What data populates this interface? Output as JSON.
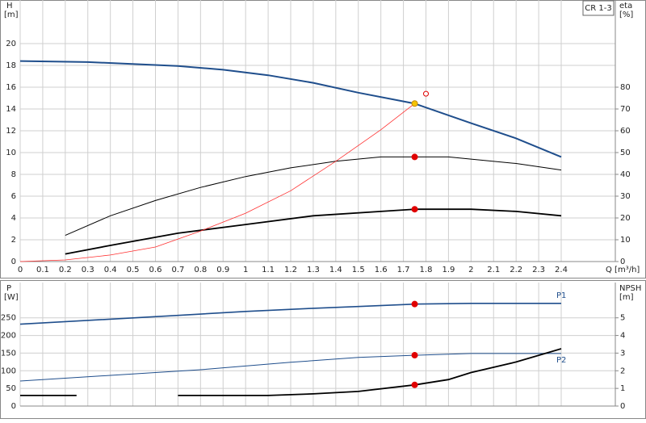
{
  "chart_data": [
    {
      "type": "line",
      "annotation": "CR 1-3",
      "y_label": "H",
      "y_unit": "[m]",
      "y2_label": "eta",
      "y2_unit": "[%]",
      "x_label": "Q [m³/h]",
      "grid": true,
      "xlim": [
        0,
        2.64
      ],
      "xticks": [
        0,
        0.1,
        0.2,
        0.3,
        0.4,
        0.5,
        0.6,
        0.7,
        0.8,
        0.9,
        1,
        1.1,
        1.2,
        1.3,
        1.4,
        1.5,
        1.6,
        1.7,
        1.8,
        1.9,
        2,
        2.1,
        2.2,
        2.3,
        2.4
      ],
      "ylim": [
        0,
        24
      ],
      "yticks": [
        0,
        2,
        4,
        6,
        8,
        10,
        12,
        14,
        16,
        18,
        20
      ],
      "y2lim": [
        0,
        120
      ],
      "y2ticks": [
        0,
        10,
        20,
        30,
        40,
        50,
        60,
        70,
        80
      ],
      "series": [
        {
          "color": "#1f4e8c",
          "line_width": 2,
          "x": [
            0,
            0.3,
            0.7,
            0.9,
            1.1,
            1.3,
            1.5,
            1.75,
            2.0,
            2.2,
            2.4
          ],
          "values": [
            18.4,
            18.3,
            17.95,
            17.6,
            17.1,
            16.4,
            15.5,
            14.5,
            12.7,
            11.3,
            9.6
          ]
        },
        {
          "color": "#000000",
          "line_width": 1,
          "axis": "y2",
          "x": [
            0.2,
            0.4,
            0.6,
            0.8,
            1.0,
            1.2,
            1.4,
            1.6,
            1.75,
            1.9,
            2.0,
            2.2,
            2.4
          ],
          "values": [
            12,
            21,
            28,
            34,
            39,
            43,
            46,
            48,
            48,
            48,
            47,
            45,
            42
          ]
        },
        {
          "color": "#000000",
          "line_width": 1.8,
          "axis": "y2",
          "x": [
            0.2,
            0.4,
            0.7,
            1.0,
            1.3,
            1.6,
            1.75,
            1.9,
            2.0,
            2.2,
            2.4
          ],
          "values": [
            3.5,
            7.4,
            13,
            17,
            21,
            23,
            24,
            24,
            24,
            23,
            21
          ]
        },
        {
          "color": "#ff3030",
          "line_width": 0.8,
          "x": [
            0,
            0.2,
            0.4,
            0.6,
            0.8,
            1.0,
            1.2,
            1.4,
            1.6,
            1.75
          ],
          "values": [
            0,
            0.15,
            0.6,
            1.33,
            2.8,
            4.44,
            6.5,
            9.2,
            12.1,
            14.5
          ]
        }
      ],
      "markers": [
        {
          "x": 1.75,
          "y": 14.5,
          "color": "#f5c400",
          "style": "filled"
        },
        {
          "x": 1.75,
          "y": 48,
          "axis": "y2",
          "color": "#e00000",
          "style": "filled"
        },
        {
          "x": 1.75,
          "y": 24,
          "axis": "y2",
          "color": "#e00000",
          "style": "filled"
        },
        {
          "x": 1.8,
          "y": 15.4,
          "color": "#e00000",
          "style": "open"
        }
      ]
    },
    {
      "type": "line",
      "y_label": "P",
      "y_unit": "[W]",
      "y2_label": "NPSH",
      "y2_unit": "[m]",
      "grid": true,
      "xlim": [
        0,
        2.64
      ],
      "ylim": [
        0,
        350
      ],
      "yticks": [
        0,
        50,
        100,
        150,
        200,
        250
      ],
      "y2lim": [
        0,
        7
      ],
      "y2ticks": [
        0,
        1,
        2,
        3,
        4,
        5
      ],
      "series": [
        {
          "name": "P1",
          "color": "#1f4e8c",
          "line_width": 1.6,
          "x": [
            0,
            0.7,
            1.0,
            1.3,
            1.5,
            1.75,
            2.0,
            2.4
          ],
          "values": [
            232,
            257,
            268,
            277,
            282,
            289,
            291,
            291
          ]
        },
        {
          "name": "P2",
          "color": "#1f4e8c",
          "line_width": 1,
          "x": [
            0,
            0.4,
            0.8,
            1.2,
            1.5,
            1.75,
            2.0,
            2.4
          ],
          "values": [
            71,
            87,
            103,
            124,
            138,
            144,
            149,
            149
          ]
        },
        {
          "color": "#000000",
          "line_width": 1.8,
          "axis": "y2",
          "x": [
            0,
            0.25,
            0.5,
            0.7,
            1.1,
            1.3,
            1.5,
            1.75,
            1.9,
            2.0,
            2.2,
            2.4
          ],
          "values": [
            0.6,
            0.6,
            null,
            0.6,
            0.6,
            0.69,
            0.83,
            1.2,
            1.5,
            1.9,
            2.5,
            3.25
          ]
        }
      ],
      "markers": [
        {
          "x": 1.75,
          "y": 289,
          "color": "#e00000",
          "style": "filled"
        },
        {
          "x": 1.75,
          "y": 144,
          "color": "#e00000",
          "style": "filled"
        },
        {
          "x": 1.75,
          "y": 1.2,
          "axis": "y2",
          "color": "#e00000",
          "style": "filled"
        }
      ]
    }
  ]
}
